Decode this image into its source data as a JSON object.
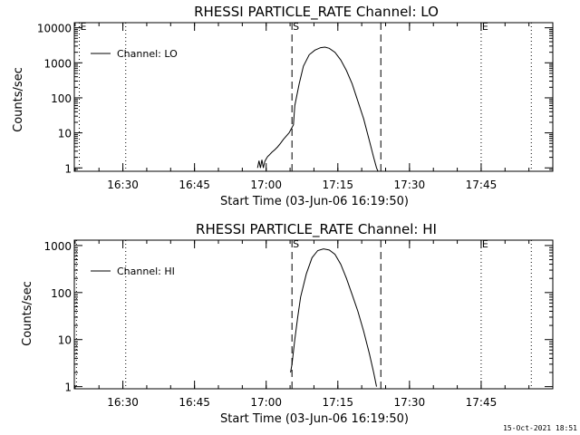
{
  "chart_data": [
    {
      "type": "line",
      "title": "RHESSI PARTICLE_RATE Channel: LO",
      "xlabel": "Start Time (03-Jun-06 16:19:50)",
      "ylabel": "Counts/sec",
      "yscale": "log",
      "xlim": [
        16.3306,
        18.0
      ],
      "ylim": [
        0.8,
        14000
      ],
      "x_ticks": [
        {
          "value": 16.5,
          "label": "16:30"
        },
        {
          "value": 16.75,
          "label": "16:45"
        },
        {
          "value": 17.0,
          "label": "17:00"
        },
        {
          "value": 17.25,
          "label": "17:15"
        },
        {
          "value": 17.5,
          "label": "17:30"
        },
        {
          "value": 17.75,
          "label": "17:45"
        }
      ],
      "y_ticks": [
        {
          "value": 1,
          "label": "1"
        },
        {
          "value": 10,
          "label": "10"
        },
        {
          "value": 100,
          "label": "100"
        },
        {
          "value": 1000,
          "label": "1000"
        },
        {
          "value": 10000,
          "label": "10000"
        }
      ],
      "legend": {
        "placement": "top-left",
        "entries": [
          "Channel: LO"
        ]
      },
      "series": [
        {
          "name": "Channel: LO",
          "x": [
            16.97,
            16.975,
            16.98,
            16.985,
            16.99,
            16.995,
            17.0,
            17.005,
            17.01,
            17.02,
            17.03,
            17.04,
            17.05,
            17.06,
            17.08,
            17.095,
            17.1,
            17.115,
            17.13,
            17.15,
            17.17,
            17.19,
            17.205,
            17.22,
            17.24,
            17.26,
            17.28,
            17.3,
            17.32,
            17.34,
            17.36,
            17.375,
            17.385,
            17.39
          ],
          "y": [
            1,
            1.6,
            1,
            1.7,
            1,
            1.5,
            1.8,
            2.1,
            2.3,
            2.8,
            3.3,
            4.0,
            5.0,
            6.5,
            10,
            17,
            60,
            250,
            800,
            1700,
            2300,
            2700,
            2800,
            2600,
            2000,
            1200,
            600,
            250,
            80,
            25,
            6,
            2,
            1,
            0.8
          ]
        }
      ],
      "markers": [
        {
          "x": 16.348,
          "label": "E",
          "style": "dotted"
        },
        {
          "x": 16.51,
          "label": "",
          "style": "dotted"
        },
        {
          "x": 17.09,
          "label": "S",
          "style": "dashed"
        },
        {
          "x": 17.4,
          "label": "",
          "style": "dashed"
        },
        {
          "x": 17.75,
          "label": "E",
          "style": "dotted"
        },
        {
          "x": 17.925,
          "label": "",
          "style": "dotted"
        }
      ]
    },
    {
      "type": "line",
      "title": "RHESSI PARTICLE_RATE Channel: HI",
      "xlabel": "Start Time (03-Jun-06 16:19:50)",
      "ylabel": "Counts/sec",
      "yscale": "log",
      "xlim": [
        16.3306,
        18.0
      ],
      "ylim": [
        0.9,
        1300
      ],
      "x_ticks": [
        {
          "value": 16.5,
          "label": "16:30"
        },
        {
          "value": 16.75,
          "label": "16:45"
        },
        {
          "value": 17.0,
          "label": "17:00"
        },
        {
          "value": 17.25,
          "label": "17:15"
        },
        {
          "value": 17.5,
          "label": "17:30"
        },
        {
          "value": 17.75,
          "label": "17:45"
        }
      ],
      "y_ticks": [
        {
          "value": 1,
          "label": "1"
        },
        {
          "value": 10,
          "label": "10"
        },
        {
          "value": 100,
          "label": "100"
        },
        {
          "value": 1000,
          "label": "1000"
        }
      ],
      "legend": {
        "placement": "top-left",
        "entries": [
          "Channel: HI"
        ]
      },
      "series": [
        {
          "name": "Channel: HI",
          "x": [
            17.085,
            17.09,
            17.1,
            17.11,
            17.12,
            17.14,
            17.16,
            17.18,
            17.2,
            17.22,
            17.24,
            17.26,
            17.28,
            17.3,
            17.32,
            17.34,
            17.36,
            17.375,
            17.385
          ],
          "y": [
            2,
            3,
            10,
            30,
            80,
            250,
            550,
            780,
            850,
            800,
            650,
            400,
            200,
            90,
            40,
            15,
            5,
            2,
            1
          ]
        }
      ],
      "markers": [
        {
          "x": 16.338,
          "label": "",
          "style": "dotted"
        },
        {
          "x": 16.51,
          "label": "",
          "style": "dotted"
        },
        {
          "x": 17.09,
          "label": "S",
          "style": "dashed"
        },
        {
          "x": 17.4,
          "label": "",
          "style": "dashed"
        },
        {
          "x": 17.75,
          "label": "E",
          "style": "dotted"
        },
        {
          "x": 17.925,
          "label": "",
          "style": "dotted"
        }
      ]
    }
  ],
  "footer": "15-Oct-2021 18:51",
  "colors": {
    "background": "#ffffff",
    "foreground": "#000000"
  }
}
